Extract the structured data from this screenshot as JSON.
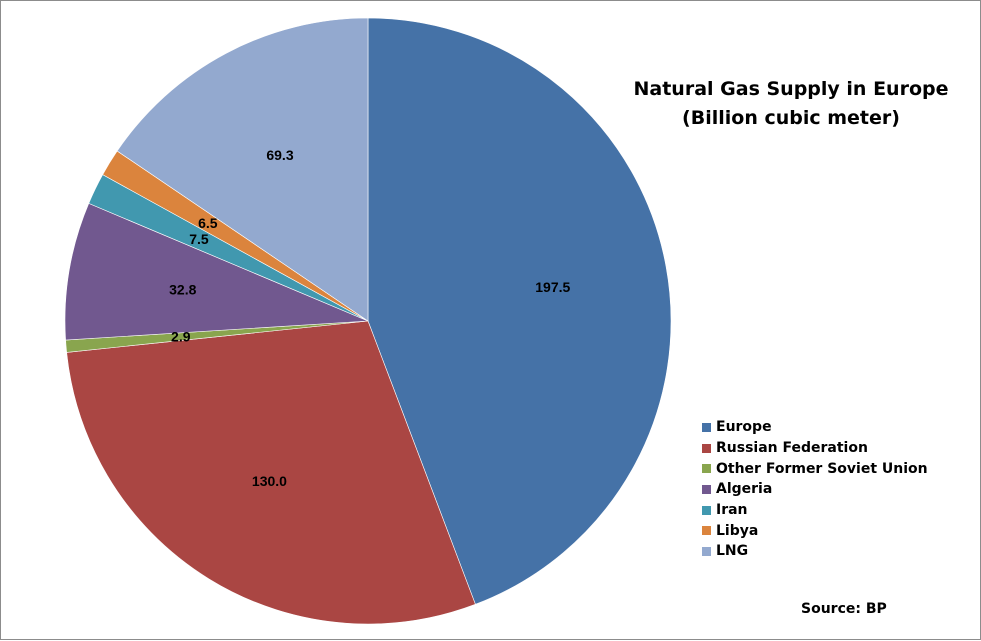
{
  "chart_data": {
    "type": "pie",
    "title": "Natural Gas Supply in Europe",
    "subtitle": "(Billion cubic meter)",
    "categories": [
      "Europe",
      "Russian Federation",
      "Other Former Soviet Union",
      "Algeria",
      "Iran",
      "Libya",
      "LNG"
    ],
    "values": [
      197.5,
      130.0,
      2.9,
      32.8,
      7.5,
      6.5,
      69.3
    ],
    "value_labels": [
      "197.5",
      "130.0",
      "2.9",
      "32.8",
      "7.5",
      "6.5",
      "69.3"
    ],
    "colors": [
      "#4572A7",
      "#AA4643",
      "#89A54E",
      "#71588F",
      "#4198AF",
      "#DB843D",
      "#93A9CF"
    ],
    "legend_position": "right",
    "source": "Source: BP"
  }
}
